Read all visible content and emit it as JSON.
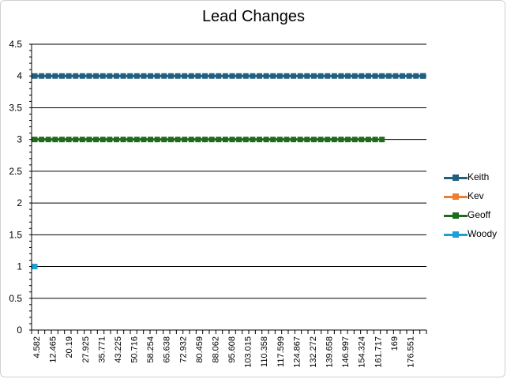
{
  "chart_data": {
    "type": "line",
    "title": "Lead Changes",
    "xlabel": "",
    "ylabel": "",
    "ylim": [
      0,
      4.5
    ],
    "yticks": [
      "0",
      "0.5",
      "1",
      "1.5",
      "2",
      "2.5",
      "3",
      "3.5",
      "4",
      "4.5"
    ],
    "grid": true,
    "legend": "right",
    "x_tick_labels": [
      "4.582",
      "12.465",
      "20.19",
      "27.925",
      "35.771",
      "43.225",
      "50.716",
      "58.254",
      "65.638",
      "72.932",
      "80.459",
      "88.062",
      "95.608",
      "103.015",
      "110.358",
      "117.599",
      "124.867",
      "132.272",
      "139.658",
      "146.997",
      "154.324",
      "161.717",
      "169",
      "176.551"
    ],
    "series": [
      {
        "name": "Keith",
        "color": "#1f5f7f",
        "y": 4,
        "start_index": 0,
        "end_index": 58
      },
      {
        "name": "Kev",
        "color": "#ed7d31",
        "y": 1,
        "start_index": 0,
        "end_index": 0
      },
      {
        "name": "Geoff",
        "color": "#1e6b1e",
        "y": 3,
        "start_index": 0,
        "end_index": 51
      },
      {
        "name": "Woody",
        "color": "#1ba1d8",
        "y": 1,
        "start_index": 0,
        "end_index": 0
      }
    ]
  }
}
